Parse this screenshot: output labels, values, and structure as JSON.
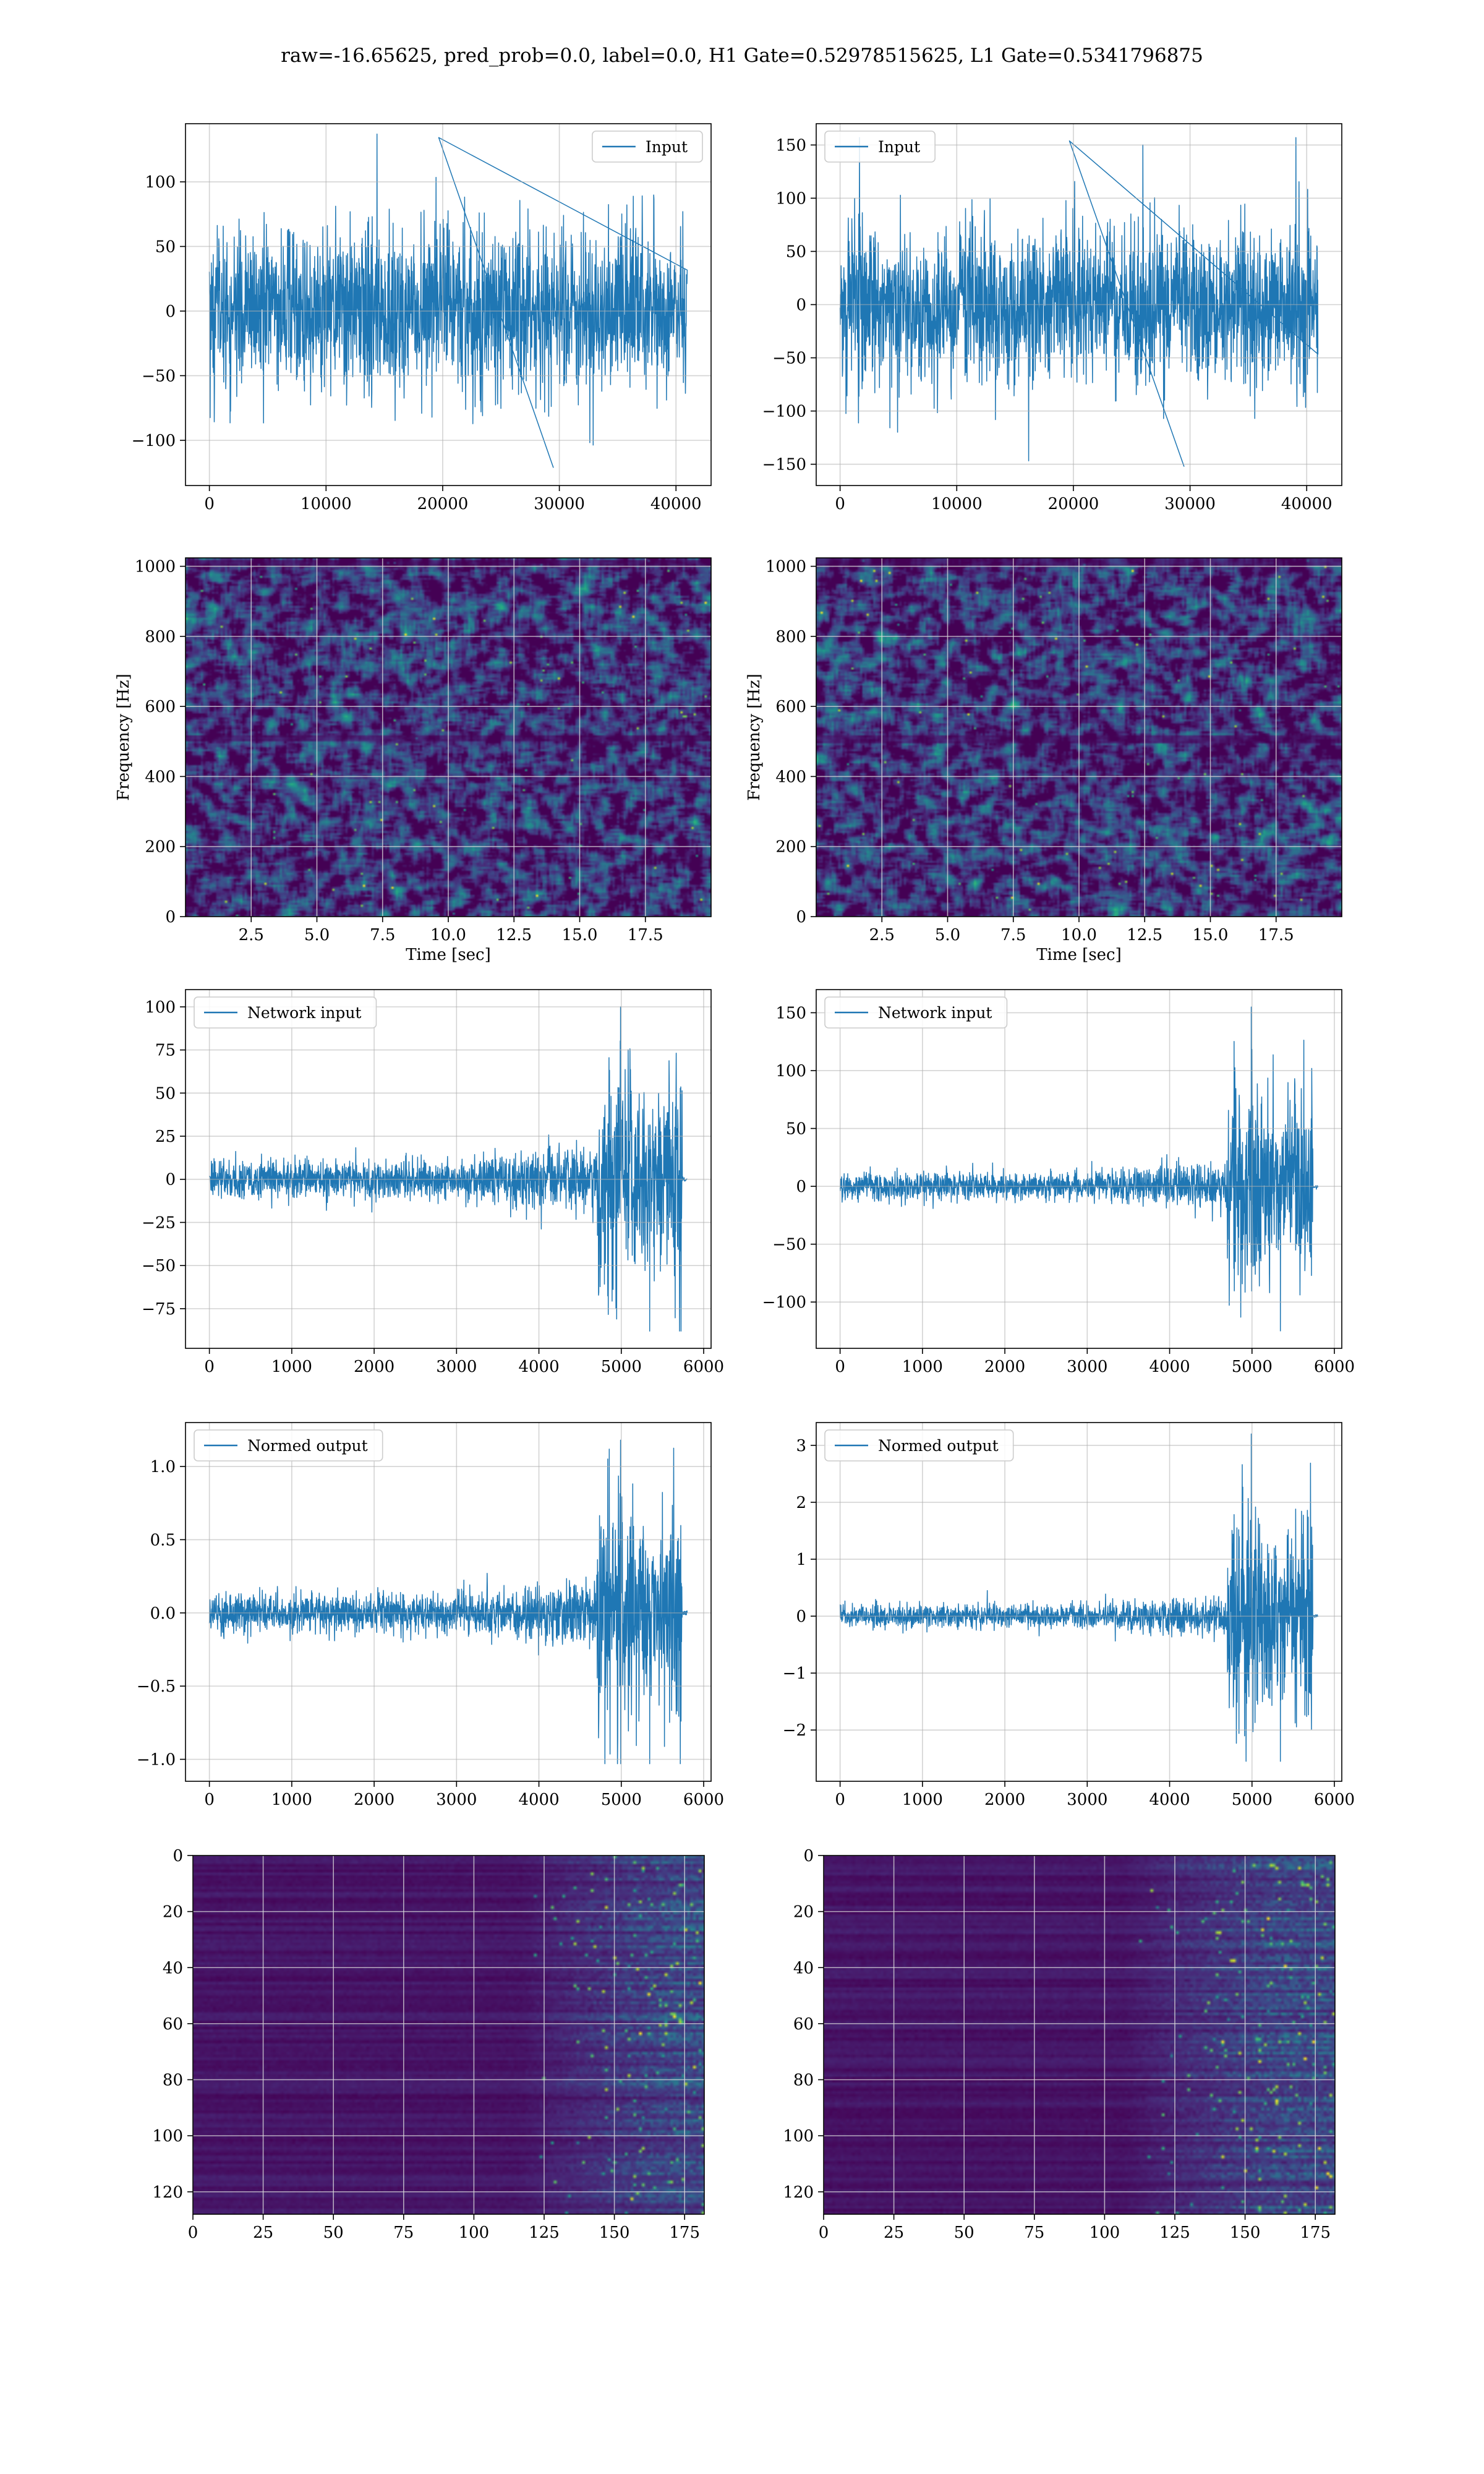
{
  "figure": {
    "suptitle": "raw=-16.65625, pred_prob=0.0, label=0.0, H1 Gate=0.52978515625, L1 Gate=0.5341796875"
  },
  "colors": {
    "line": "#1f77b4",
    "grid": "#b0b0b0",
    "viridis": [
      "#440154",
      "#482878",
      "#3e4989",
      "#31688e",
      "#26828e",
      "#1f9e89",
      "#35b779",
      "#6ece58",
      "#b5de2b",
      "#fde725"
    ]
  },
  "chart_data": [
    {
      "id": "h1-input",
      "type": "line",
      "legend": [
        "Input"
      ],
      "legend_loc": "upper right",
      "series": [
        {
          "name": "Input",
          "summary": {
            "n_samples": 40960,
            "amplitude_range": [
              -125,
              137
            ],
            "typical_envelope": 75
          }
        }
      ],
      "xlim": [
        -2048,
        43008
      ],
      "ylim": [
        -135,
        145
      ],
      "xticks": [
        0,
        10000,
        20000,
        30000,
        40000
      ],
      "xtick_labels": [
        "0",
        "10000",
        "20000",
        "30000",
        "40000"
      ],
      "yticks": [
        -100,
        -50,
        0,
        50,
        100
      ],
      "ytick_labels": [
        "−100",
        "−50",
        "0",
        "50",
        "100"
      ],
      "grid": true,
      "xlabel": "",
      "ylabel": ""
    },
    {
      "id": "l1-input",
      "type": "line",
      "legend": [
        "Input"
      ],
      "legend_loc": "upper left",
      "series": [
        {
          "name": "Input",
          "summary": {
            "n_samples": 40960,
            "amplitude_range": [
              -157,
              157
            ],
            "typical_envelope": 85
          }
        }
      ],
      "xlim": [
        -2048,
        43008
      ],
      "ylim": [
        -170,
        170
      ],
      "xticks": [
        0,
        10000,
        20000,
        30000,
        40000
      ],
      "xtick_labels": [
        "0",
        "10000",
        "20000",
        "30000",
        "40000"
      ],
      "yticks": [
        -150,
        -100,
        -50,
        0,
        50,
        100,
        150
      ],
      "ytick_labels": [
        "−150",
        "−100",
        "−50",
        "0",
        "50",
        "100",
        "150"
      ],
      "grid": true,
      "xlabel": "",
      "ylabel": ""
    },
    {
      "id": "h1-spectrogram",
      "type": "heatmap",
      "xlim": [
        0,
        20
      ],
      "ylim": [
        0,
        1024
      ],
      "xticks": [
        2.5,
        5.0,
        7.5,
        10.0,
        12.5,
        15.0,
        17.5
      ],
      "xtick_labels": [
        "2.5",
        "5.0",
        "7.5",
        "10.0",
        "12.5",
        "15.0",
        "17.5"
      ],
      "yticks": [
        0,
        200,
        400,
        600,
        800,
        1000
      ],
      "ytick_labels": [
        "0",
        "200",
        "400",
        "600",
        "800",
        "1000"
      ],
      "grid": true,
      "xlabel": "Time [sec]",
      "ylabel": "Frequency [Hz]",
      "colormap": "viridis",
      "dark_bands_hz": [
        512,
        1014
      ]
    },
    {
      "id": "l1-spectrogram",
      "type": "heatmap",
      "xlim": [
        0,
        20
      ],
      "ylim": [
        0,
        1024
      ],
      "xticks": [
        2.5,
        5.0,
        7.5,
        10.0,
        12.5,
        15.0,
        17.5
      ],
      "xtick_labels": [
        "2.5",
        "5.0",
        "7.5",
        "10.0",
        "12.5",
        "15.0",
        "17.5"
      ],
      "yticks": [
        0,
        200,
        400,
        600,
        800,
        1000
      ],
      "ytick_labels": [
        "0",
        "200",
        "400",
        "600",
        "800",
        "1000"
      ],
      "grid": true,
      "xlabel": "Time [sec]",
      "ylabel": "Frequency [Hz]",
      "colormap": "viridis",
      "dark_bands_hz": [
        510,
        1016
      ]
    },
    {
      "id": "h1-network-input",
      "type": "line",
      "legend": [
        "Network input"
      ],
      "legend_loc": "upper left",
      "series": [
        {
          "name": "Network input",
          "summary": {
            "n_samples": 5760,
            "baseline_envelope": 17,
            "burst_start": 4700,
            "burst_end": 5740,
            "peak": 100,
            "trough": -88,
            "tail_to": 5800
          }
        }
      ],
      "xlim": [
        -290,
        6090
      ],
      "ylim": [
        -98,
        110
      ],
      "xticks": [
        0,
        1000,
        2000,
        3000,
        4000,
        5000,
        6000
      ],
      "xtick_labels": [
        "0",
        "1000",
        "2000",
        "3000",
        "4000",
        "5000",
        "6000"
      ],
      "yticks": [
        -75,
        -50,
        -25,
        0,
        25,
        50,
        75,
        100
      ],
      "ytick_labels": [
        "−75",
        "−50",
        "−25",
        "0",
        "25",
        "50",
        "75",
        "100"
      ],
      "grid": true,
      "xlabel": "",
      "ylabel": ""
    },
    {
      "id": "l1-network-input",
      "type": "line",
      "legend": [
        "Network input"
      ],
      "legend_loc": "upper left",
      "series": [
        {
          "name": "Network input",
          "summary": {
            "n_samples": 5760,
            "baseline_envelope": 18,
            "burst_start": 4700,
            "burst_end": 5740,
            "peak": 155,
            "trough": -125,
            "tail_to": 5800
          }
        }
      ],
      "xlim": [
        -290,
        6090
      ],
      "ylim": [
        -140,
        170
      ],
      "xticks": [
        0,
        1000,
        2000,
        3000,
        4000,
        5000,
        6000
      ],
      "xtick_labels": [
        "0",
        "1000",
        "2000",
        "3000",
        "4000",
        "5000",
        "6000"
      ],
      "yticks": [
        -100,
        -50,
        0,
        50,
        100,
        150
      ],
      "ytick_labels": [
        "−100",
        "−50",
        "0",
        "50",
        "100",
        "150"
      ],
      "grid": true,
      "xlabel": "",
      "ylabel": ""
    },
    {
      "id": "h1-normed-output",
      "type": "line",
      "legend": [
        "Normed output"
      ],
      "legend_loc": "upper left",
      "series": [
        {
          "name": "Normed output",
          "summary": {
            "n_samples": 5760,
            "baseline_envelope": 0.2,
            "burst_start": 4700,
            "burst_end": 5740,
            "peak": 1.18,
            "trough": -1.03,
            "tail_to": 5800
          }
        }
      ],
      "xlim": [
        -290,
        6090
      ],
      "ylim": [
        -1.15,
        1.3
      ],
      "xticks": [
        0,
        1000,
        2000,
        3000,
        4000,
        5000,
        6000
      ],
      "xtick_labels": [
        "0",
        "1000",
        "2000",
        "3000",
        "4000",
        "5000",
        "6000"
      ],
      "yticks": [
        -1.0,
        -0.5,
        0.0,
        0.5,
        1.0
      ],
      "ytick_labels": [
        "−1.0",
        "−0.5",
        "0.0",
        "0.5",
        "1.0"
      ],
      "grid": true,
      "xlabel": "",
      "ylabel": ""
    },
    {
      "id": "l1-normed-output",
      "type": "line",
      "legend": [
        "Normed output"
      ],
      "legend_loc": "upper left",
      "series": [
        {
          "name": "Normed output",
          "summary": {
            "n_samples": 5760,
            "baseline_envelope": 0.3,
            "burst_start": 4700,
            "burst_end": 5740,
            "peak": 3.2,
            "trough": -2.55,
            "tail_to": 5800
          }
        }
      ],
      "xlim": [
        -290,
        6090
      ],
      "ylim": [
        -2.9,
        3.4
      ],
      "xticks": [
        0,
        1000,
        2000,
        3000,
        4000,
        5000,
        6000
      ],
      "xtick_labels": [
        "0",
        "1000",
        "2000",
        "3000",
        "4000",
        "5000",
        "6000"
      ],
      "yticks": [
        -2,
        -1,
        0,
        1,
        2,
        3
      ],
      "ytick_labels": [
        "−2",
        "−1",
        "0",
        "1",
        "2",
        "3"
      ],
      "grid": true,
      "xlabel": "",
      "ylabel": ""
    },
    {
      "id": "h1-feature-map",
      "type": "heatmap",
      "rows": 128,
      "cols": 180,
      "xlim": [
        0,
        182
      ],
      "ylim": [
        128,
        0
      ],
      "xticks": [
        0,
        25,
        50,
        75,
        100,
        125,
        150,
        175
      ],
      "xtick_labels": [
        "0",
        "25",
        "50",
        "75",
        "100",
        "125",
        "150",
        "175"
      ],
      "yticks": [
        0,
        20,
        40,
        60,
        80,
        100,
        120
      ],
      "ytick_labels": [
        "0",
        "20",
        "40",
        "60",
        "80",
        "100",
        "120"
      ],
      "grid": true,
      "xlabel": "",
      "ylabel": "",
      "colormap": "viridis",
      "activity_onset_col": 115
    },
    {
      "id": "l1-feature-map",
      "type": "heatmap",
      "rows": 128,
      "cols": 180,
      "xlim": [
        0,
        182
      ],
      "ylim": [
        128,
        0
      ],
      "xticks": [
        0,
        25,
        50,
        75,
        100,
        125,
        150,
        175
      ],
      "xtick_labels": [
        "0",
        "25",
        "50",
        "75",
        "100",
        "125",
        "150",
        "175"
      ],
      "yticks": [
        0,
        20,
        40,
        60,
        80,
        100,
        120
      ],
      "ytick_labels": [
        "0",
        "20",
        "40",
        "60",
        "80",
        "100",
        "120"
      ],
      "grid": true,
      "xlabel": "",
      "ylabel": "",
      "colormap": "viridis",
      "activity_onset_col": 105
    }
  ]
}
